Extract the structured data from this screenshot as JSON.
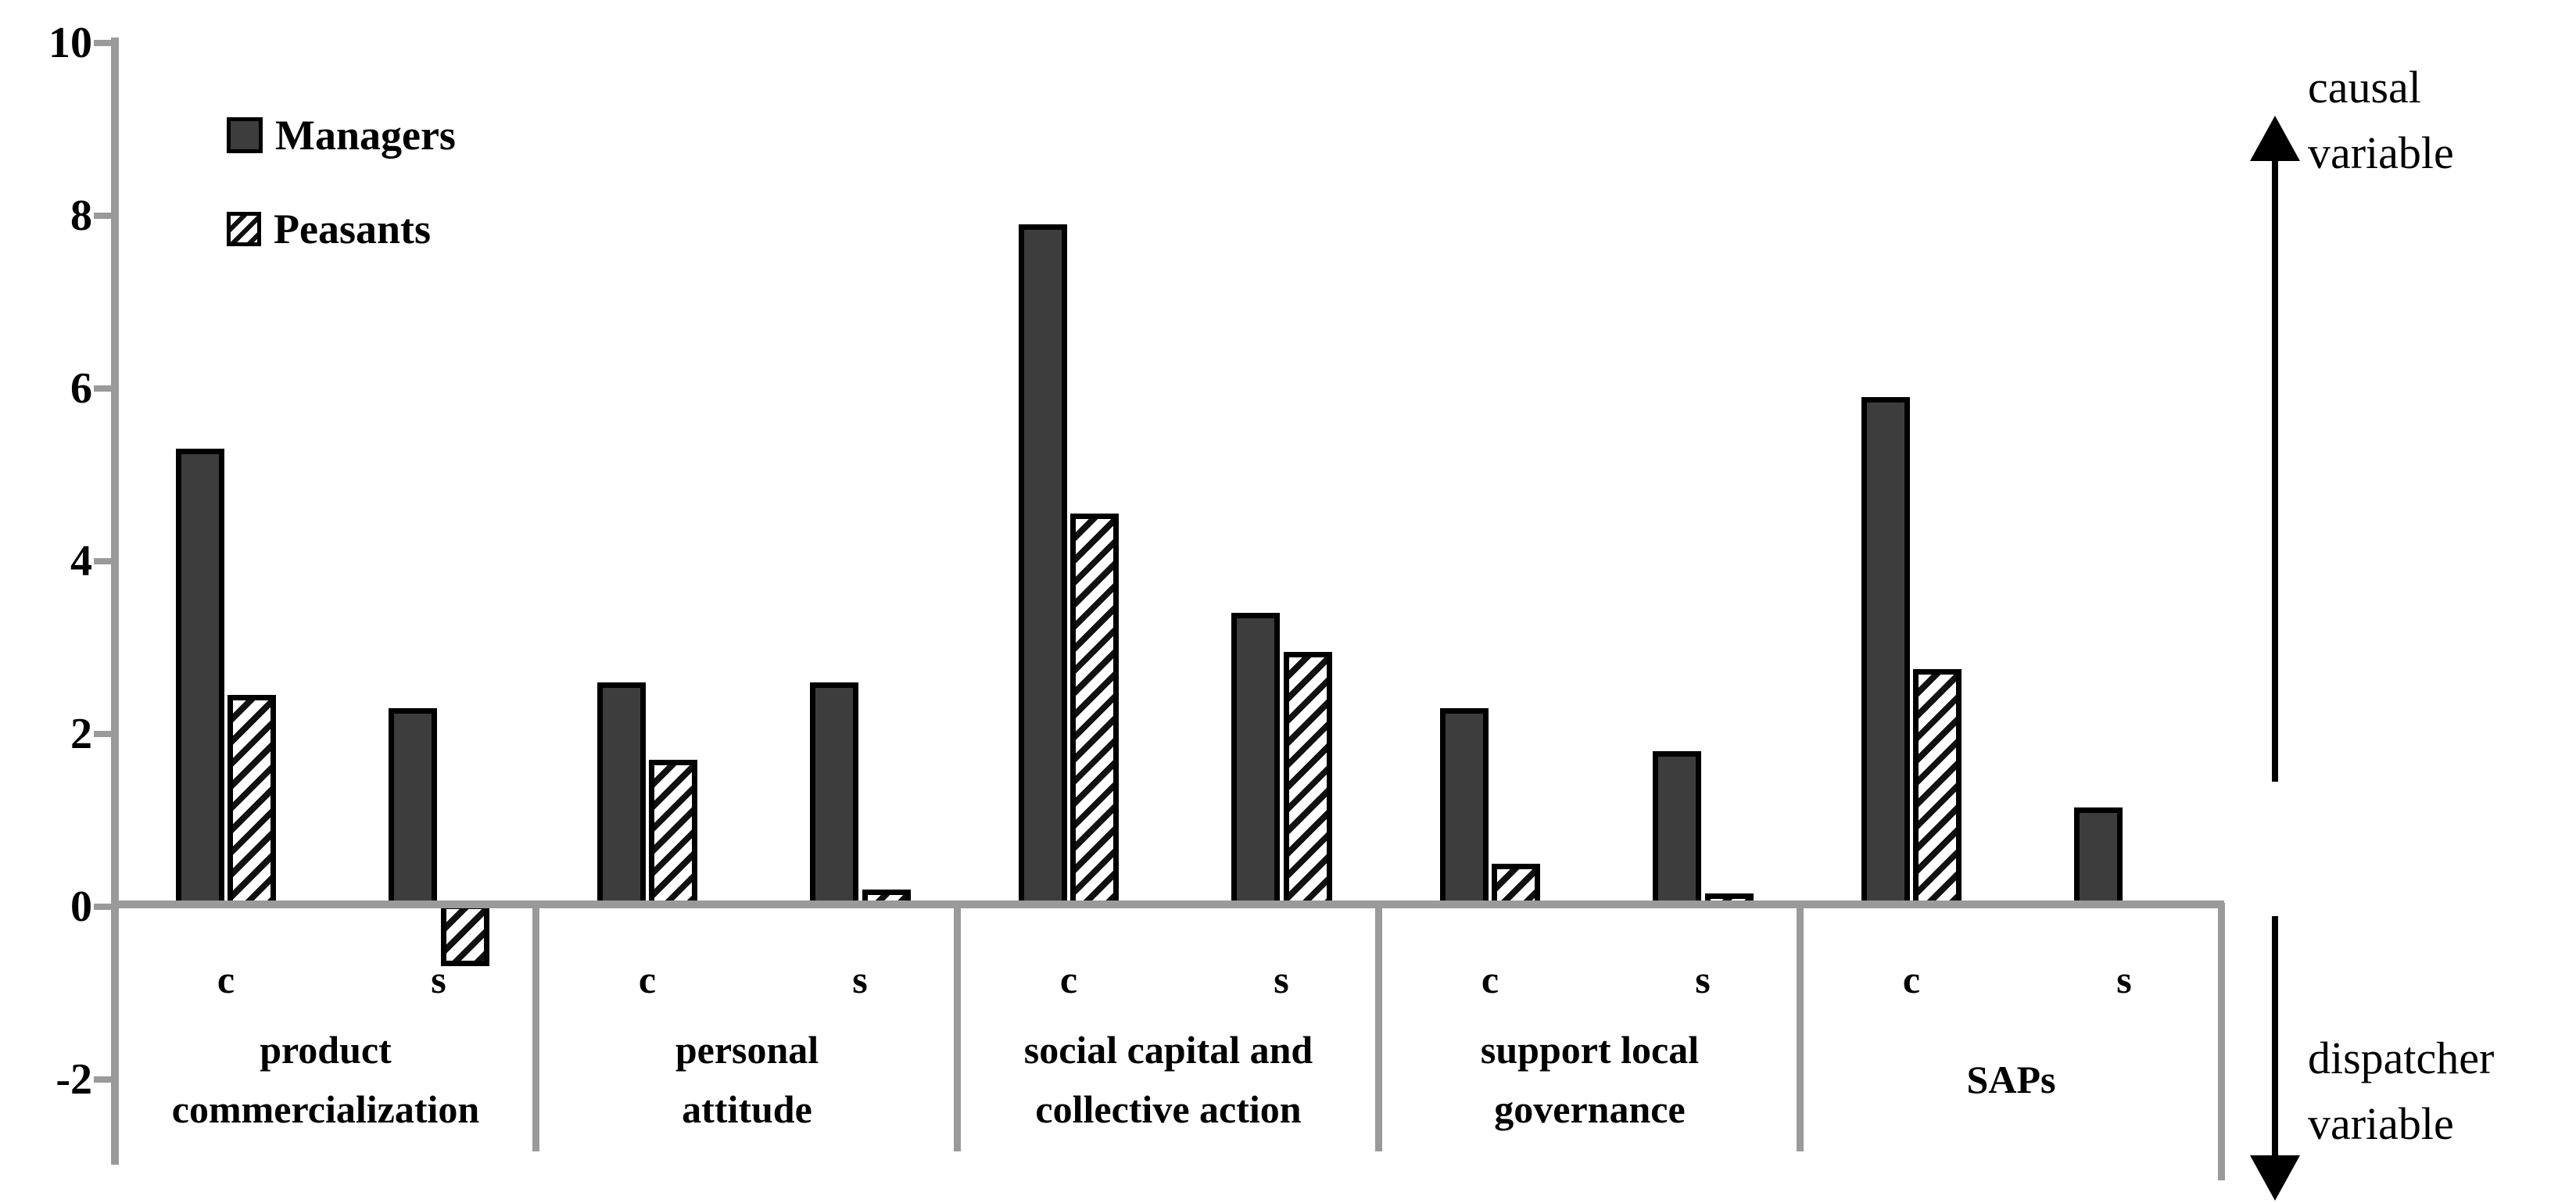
{
  "chart_data": {
    "type": "bar",
    "title": "",
    "ylim": [
      -2,
      10
    ],
    "yticks": [
      10,
      8,
      6,
      4,
      2,
      0,
      -2
    ],
    "grid": false,
    "legend_position": "top-left-inside",
    "series": [
      {
        "name": "Managers",
        "style": "solid-dark-gray",
        "fill": "#3d3d3d"
      },
      {
        "name": "Peasants",
        "style": "black-diagonal-hatch-on-white",
        "fill": "#ffffff"
      }
    ],
    "categories": [
      "product\ncommercialization",
      "personal\nattitude",
      "social capital and\ncollective action",
      "support local\ngovernance",
      "SAPs"
    ],
    "subcategories": [
      "c",
      "s"
    ],
    "values": {
      "Managers": {
        "c": [
          5.3,
          2.6,
          7.9,
          2.3,
          5.9
        ],
        "s": [
          2.3,
          2.6,
          3.4,
          1.8,
          1.15
        ]
      },
      "Peasants": {
        "c": [
          2.45,
          1.7,
          4.55,
          0.5,
          2.75
        ],
        "s": [
          -0.65,
          0.2,
          2.95,
          0.15,
          null
        ]
      }
    },
    "right_labels": {
      "up_text": "causal\nvariable",
      "down_text": "dispatcher\nvariable"
    },
    "colors": {
      "bar_fill_dark": "#3d3d3d",
      "axis_gray": "#9a9a9a",
      "hatch_stroke": "#111111",
      "text": "#000000"
    }
  }
}
